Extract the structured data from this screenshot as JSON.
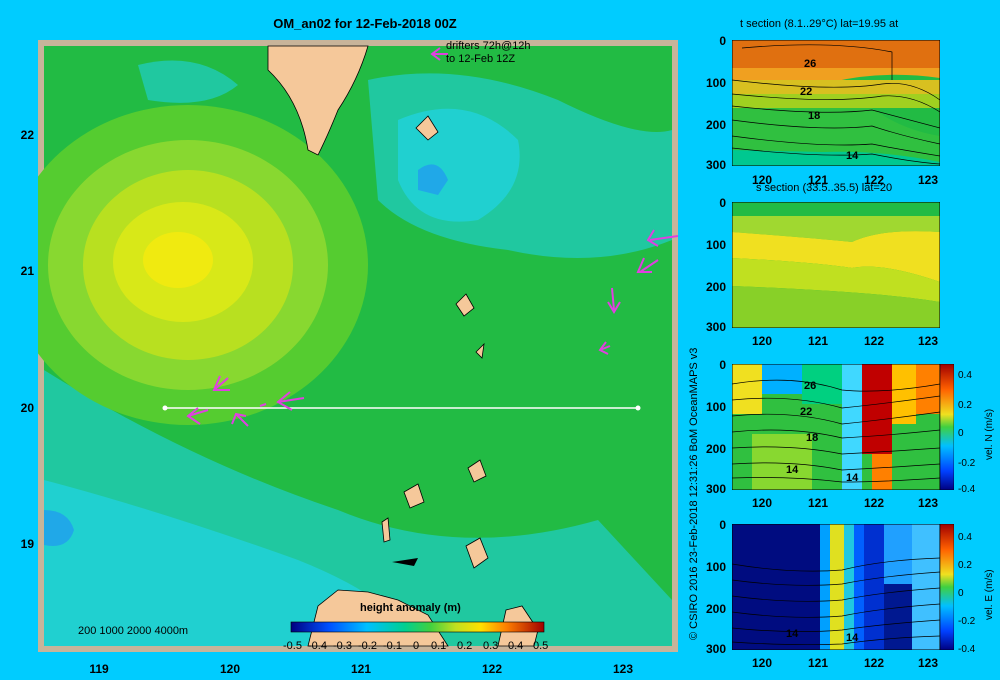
{
  "main_title": "OM_an02 for 12-Feb-2018 00Z",
  "map": {
    "lat_ticks": [
      "22",
      "21",
      "20",
      "19"
    ],
    "lon_ticks": [
      "119",
      "120",
      "121",
      "122",
      "123"
    ],
    "depth_legend": "200  1000  2000  4000m",
    "drifter_legend": [
      "drifters 72h@12h",
      "to 12-Feb 12Z"
    ],
    "colorbar_title": "height anomaly (m)",
    "colorbar_ticks": [
      "-0.5",
      "-0.4",
      "-0.3",
      "-0.2",
      "-0.1",
      "0",
      "0.1",
      "0.2",
      "0.3",
      "0.4",
      "0.5"
    ]
  },
  "credit": "© CSIRO 2016   23-Feb-2018 12:31:26 BoM OceanMAPS v3",
  "panels": [
    {
      "title": "t section (8.1..29°C) lat=19.95 at",
      "y_ticks": [
        "0",
        "100",
        "200",
        "300"
      ],
      "x_ticks": [
        "120",
        "121",
        "122",
        "123"
      ],
      "contour_labels": [
        "26",
        "22",
        "18",
        "14"
      ]
    },
    {
      "title": "s section (33.5..35.5) lat=20",
      "y_ticks": [
        "0",
        "100",
        "200",
        "300"
      ],
      "x_ticks": [
        "120",
        "121",
        "122",
        "123"
      ]
    },
    {
      "title": "",
      "y_ticks": [
        "0",
        "100",
        "200",
        "300"
      ],
      "x_ticks": [
        "120",
        "121",
        "122",
        "123"
      ],
      "contour_labels": [
        "26",
        "22",
        "18",
        "14",
        "14"
      ],
      "colorbar_title": "vel. N (m/s)",
      "colorbar_ticks": [
        "0.4",
        "0.2",
        "0",
        "-0.2",
        "-0.4"
      ]
    },
    {
      "title": "",
      "y_ticks": [
        "0",
        "100",
        "200",
        "300"
      ],
      "x_ticks": [
        "120",
        "121",
        "122",
        "123"
      ],
      "contour_labels": [
        "14",
        "14"
      ],
      "colorbar_title": "vel. E (m/s)",
      "colorbar_ticks": [
        "0.4",
        "0.2",
        "0",
        "-0.2",
        "-0.4"
      ]
    }
  ],
  "colors": {
    "background": "#00ccff",
    "frame": "#c8b49a",
    "land": "#f5c89a",
    "drifter": "#e040e0"
  }
}
